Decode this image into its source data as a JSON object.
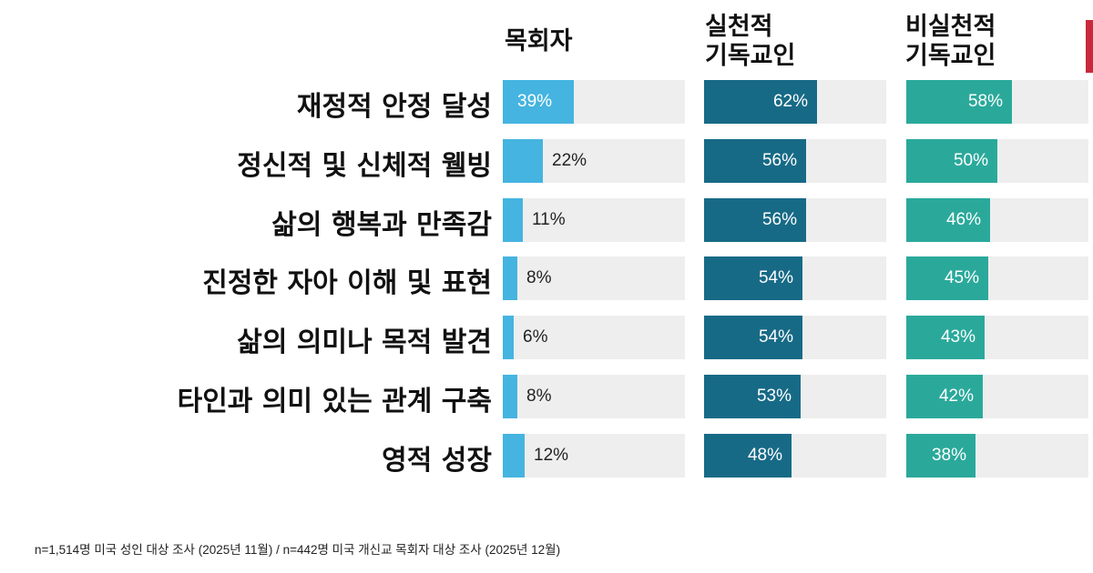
{
  "chart_data": {
    "type": "bar",
    "orientation": "horizontal",
    "categories": [
      "재정적 안정 달성",
      "정신적 및 신체적 웰빙",
      "삶의 행복과 만족감",
      "진정한 자아 이해 및 표현",
      "삶의 의미나 목적 발견",
      "타인과 의미 있는 관계 구축",
      "영적 성장"
    ],
    "series": [
      {
        "name": "목회자",
        "values": [
          39,
          22,
          11,
          8,
          6,
          8,
          12
        ],
        "color": "#45b4e0"
      },
      {
        "name": "실천적\n기독교인",
        "values": [
          62,
          56,
          56,
          54,
          54,
          53,
          48
        ],
        "color": "#176a86"
      },
      {
        "name": "비실천적\n기독교인",
        "values": [
          58,
          50,
          46,
          45,
          43,
          42,
          38
        ],
        "color": "#2aa99b"
      }
    ],
    "value_suffix": "%",
    "xlim": [
      0,
      100
    ],
    "track_color": "#eeeeee",
    "footnote": "n=1,514명 미국 성인 대상 조사 (2025년 11월) / n=442명 미국 개신교 목회자 대상 조사 (2025년 12월)"
  }
}
